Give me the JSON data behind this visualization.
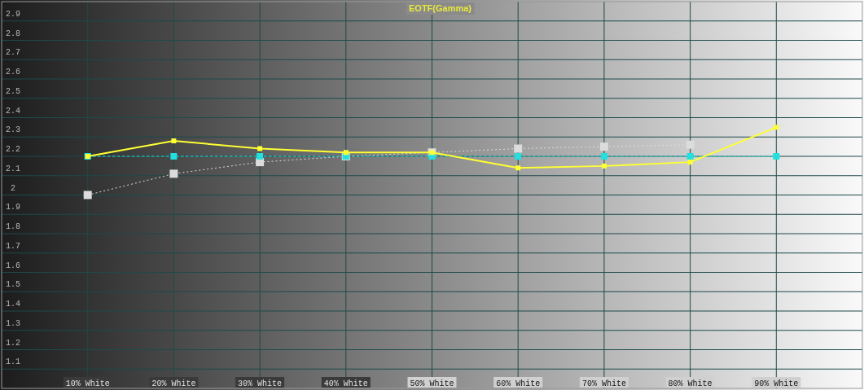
{
  "chart_data": {
    "type": "line",
    "title": "EOTF(Gamma)",
    "x": [
      10,
      20,
      30,
      40,
      50,
      60,
      70,
      80,
      90
    ],
    "xlim": [
      0,
      100
    ],
    "xticks": [
      {
        "value": 10,
        "label": "10% White"
      },
      {
        "value": 20,
        "label": "20% White"
      },
      {
        "value": 30,
        "label": "30% White"
      },
      {
        "value": 40,
        "label": "40% White"
      },
      {
        "value": 50,
        "label": "50% White"
      },
      {
        "value": 60,
        "label": "60% White"
      },
      {
        "value": 70,
        "label": "70% White"
      },
      {
        "value": 80,
        "label": "80% White"
      },
      {
        "value": 90,
        "label": "90% White"
      }
    ],
    "ylim": [
      1,
      3
    ],
    "yticks": [
      1.1,
      1.2,
      1.3,
      1.4,
      1.5,
      1.6,
      1.7,
      1.8,
      1.9,
      2,
      2.1,
      2.2,
      2.3,
      2.4,
      2.5,
      2.6,
      2.7,
      2.8,
      2.9
    ],
    "grid": true,
    "marker": "square",
    "series": [
      {
        "color": "#dcdcdc",
        "line_style": "dotted",
        "values": [
          2.0,
          2.11,
          2.17,
          2.2,
          2.22,
          2.24,
          2.25,
          2.26,
          null
        ]
      },
      {
        "color": "#22e0e0",
        "line_style": "dashed",
        "values": [
          2.2,
          2.2,
          2.2,
          2.2,
          2.2,
          2.2,
          2.2,
          2.2,
          2.2
        ]
      },
      {
        "color": "#ffff33",
        "line_style": "solid",
        "values": [
          2.2,
          2.28,
          2.24,
          2.22,
          2.22,
          2.14,
          2.15,
          2.17,
          2.35
        ]
      }
    ]
  }
}
